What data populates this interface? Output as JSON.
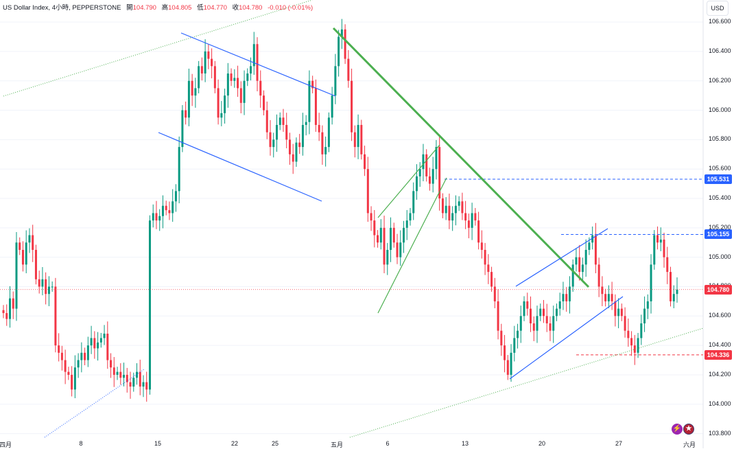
{
  "header": {
    "symbol": "US Dollar Index, 4小時, PEPPERSTONE",
    "open_label": "開",
    "open": "104.790",
    "high_label": "高",
    "high": "104.805",
    "low_label": "低",
    "low": "104.770",
    "close_label": "收",
    "close": "104.780",
    "change": "-0.010 (-0.01%)"
  },
  "currency_button": "USD",
  "colors": {
    "up": "#089981",
    "down": "#f23645",
    "trend_blue": "#2962ff",
    "trend_green": "#4caf50",
    "current_price_label": "#f23645",
    "level_label": "#2962ff"
  },
  "icons": [
    "flash-icon",
    "us-flag-icon"
  ],
  "chart_data": {
    "type": "candlestick",
    "interval": "4小時",
    "ylim": [
      103.7,
      106.75
    ],
    "y_ticks": [
      "103.800",
      "104.000",
      "104.200",
      "104.400",
      "104.600",
      "104.800",
      "105.000",
      "105.200",
      "105.400",
      "105.600",
      "105.800",
      "106.000",
      "106.200",
      "106.400",
      "106.600"
    ],
    "x_ticks": [
      "四月",
      "8",
      "15",
      "22",
      "25",
      "五月",
      "6",
      "13",
      "20",
      "27",
      "六月"
    ],
    "price_labels": [
      {
        "text": "105.531",
        "value": 105.531,
        "kind": "level"
      },
      {
        "text": "105.155",
        "value": 105.155,
        "kind": "level"
      },
      {
        "text": "104.780",
        "value": 104.78,
        "kind": "current"
      },
      {
        "text": "104.336",
        "value": 104.336,
        "kind": "level-red"
      }
    ],
    "candles_close": [
      104.62,
      104.58,
      104.72,
      104.65,
      105.1,
      105.05,
      104.95,
      105.1,
      105.15,
      105.05,
      104.85,
      104.8,
      104.85,
      104.75,
      104.8,
      104.8,
      104.4,
      104.35,
      104.3,
      104.22,
      104.2,
      104.1,
      104.25,
      104.3,
      104.35,
      104.3,
      104.4,
      104.45,
      104.38,
      104.42,
      104.45,
      104.48,
      104.3,
      104.25,
      104.2,
      104.22,
      104.18,
      104.2,
      104.15,
      104.12,
      104.18,
      104.22,
      104.12,
      104.15,
      104.1,
      105.25,
      105.3,
      105.25,
      105.28,
      105.35,
      105.32,
      105.3,
      105.38,
      105.45,
      105.75,
      106.0,
      105.95,
      106.2,
      106.1,
      106.15,
      106.3,
      106.25,
      106.4,
      106.35,
      106.3,
      106.15,
      105.95,
      105.98,
      106.1,
      106.25,
      106.2,
      106.22,
      106.15,
      106.05,
      106.2,
      106.25,
      106.3,
      106.45,
      106.2,
      106.1,
      106.0,
      105.85,
      105.75,
      105.8,
      105.9,
      105.95,
      105.9,
      105.8,
      105.7,
      105.65,
      105.78,
      105.75,
      105.9,
      105.92,
      106.2,
      106.15,
      105.9,
      105.85,
      105.7,
      105.75,
      105.95,
      106.1,
      106.3,
      106.5,
      106.55,
      106.35,
      106.2,
      105.85,
      105.75,
      105.9,
      105.7,
      105.6,
      105.3,
      105.25,
      105.15,
      105.1,
      105.2,
      104.95,
      105.05,
      105.2,
      105.1,
      105.0,
      105.1,
      105.2,
      105.25,
      105.3,
      105.45,
      105.55,
      105.6,
      105.7,
      105.55,
      105.5,
      105.6,
      105.75,
      105.4,
      105.3,
      105.35,
      105.25,
      105.3,
      105.35,
      105.38,
      105.3,
      105.25,
      105.2,
      105.3,
      105.25,
      105.1,
      105.05,
      104.95,
      104.9,
      104.8,
      104.7,
      104.5,
      104.4,
      104.3,
      104.2,
      104.35,
      104.45,
      104.5,
      104.6,
      104.7,
      104.65,
      104.55,
      104.5,
      104.6,
      104.65,
      104.6,
      104.55,
      104.5,
      104.6,
      104.65,
      104.7,
      104.75,
      104.7,
      104.8,
      104.95,
      105.0,
      104.9,
      104.95,
      105.05,
      105.1,
      105.15,
      104.95,
      104.8,
      104.75,
      104.7,
      104.75,
      104.7,
      104.6,
      104.65,
      104.6,
      104.5,
      104.45,
      104.4,
      104.35,
      104.45,
      104.55,
      104.65,
      104.7,
      104.95,
      105.15,
      105.1,
      105.12,
      105.0,
      104.9,
      104.7,
      104.75,
      104.78
    ],
    "trendlines": [
      {
        "color": "trend_blue",
        "style": "solid",
        "label": "descending channel upper"
      },
      {
        "color": "trend_blue",
        "style": "solid",
        "label": "descending channel lower"
      },
      {
        "color": "trend_green",
        "style": "solid",
        "label": "major downtrend"
      },
      {
        "color": "trend_green",
        "style": "solid",
        "label": "rising wedge"
      },
      {
        "color": "trend_blue",
        "style": "solid",
        "label": "ascending channel"
      },
      {
        "color": "trend_green",
        "style": "dotted",
        "label": "long-term support"
      },
      {
        "color": "trend_blue",
        "style": "dotted",
        "label": "early support"
      }
    ]
  }
}
